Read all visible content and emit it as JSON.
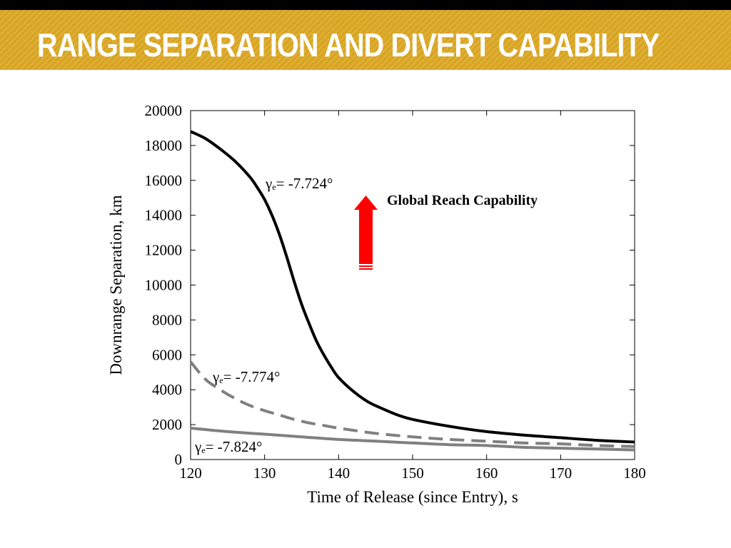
{
  "slide": {
    "title": "RANGE SEPARATION AND DIVERT CAPABILITY",
    "banner_color": "#d9a521",
    "title_color": "#ffffff"
  },
  "callout": {
    "text": "Global Reach Capability",
    "arrow_icon": "red-up-arrow-icon",
    "arrow_color": "#ff0000"
  },
  "chart_data": {
    "type": "line",
    "xlabel": "Time of Release (since Entry), s",
    "ylabel": "Downrange Separation, km",
    "xlim": [
      120,
      180
    ],
    "ylim": [
      0,
      20000
    ],
    "xticks": [
      "120",
      "130",
      "140",
      "150",
      "160",
      "170",
      "180"
    ],
    "yticks": [
      "0",
      "2000",
      "4000",
      "6000",
      "8000",
      "10000",
      "12000",
      "14000",
      "16000",
      "18000",
      "20000"
    ],
    "grid": false,
    "legend": "none",
    "series": [
      {
        "label_symbol": "γ",
        "label_sub": "e",
        "label_value": "= -7.724°",
        "color": "#000000",
        "style": "solid",
        "x": [
          120,
          122,
          124,
          126,
          128,
          129,
          130,
          131,
          132,
          133,
          134,
          135,
          136,
          137,
          138,
          139,
          140,
          142,
          144,
          146,
          148,
          150,
          155,
          160,
          165,
          170,
          175,
          180
        ],
        "y": [
          18800,
          18400,
          17800,
          17100,
          16200,
          15600,
          14900,
          14000,
          12900,
          11600,
          10200,
          8900,
          7800,
          6800,
          6000,
          5300,
          4700,
          3900,
          3300,
          2900,
          2550,
          2300,
          1900,
          1600,
          1400,
          1250,
          1100,
          1000
        ]
      },
      {
        "label_symbol": "γ",
        "label_sub": "e",
        "label_value": "= -7.774°",
        "color": "#808080",
        "style": "dashed",
        "x": [
          120,
          122,
          124,
          126,
          128,
          130,
          132,
          134,
          136,
          138,
          140,
          145,
          150,
          155,
          160,
          165,
          170,
          175,
          180
        ],
        "y": [
          5600,
          4600,
          4000,
          3500,
          3100,
          2800,
          2550,
          2300,
          2100,
          1950,
          1800,
          1500,
          1300,
          1150,
          1050,
          950,
          900,
          800,
          750
        ]
      },
      {
        "label_symbol": "γ",
        "label_sub": "e",
        "label_value": "= -7.824°",
        "color": "#808080",
        "style": "solid",
        "x": [
          120,
          125,
          130,
          135,
          140,
          145,
          150,
          155,
          160,
          165,
          170,
          175,
          180
        ],
        "y": [
          1800,
          1600,
          1450,
          1300,
          1150,
          1050,
          950,
          850,
          800,
          700,
          650,
          600,
          550
        ]
      }
    ]
  }
}
